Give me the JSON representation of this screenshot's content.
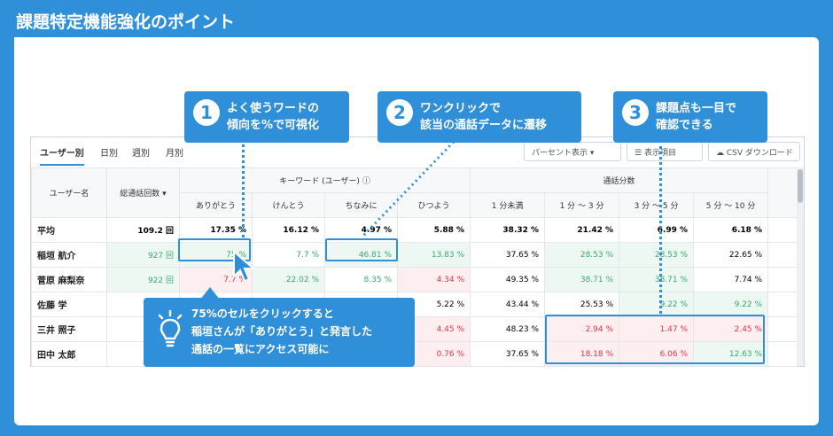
{
  "banner_title": "課題特定機能強化のポイント",
  "tabs": [
    "ユーザー別",
    "日別",
    "週別",
    "月別"
  ],
  "controls": {
    "percent": "パーセント表示",
    "display": "表示項目",
    "csv": "CSV ダウンロード"
  },
  "headers": {
    "user": "ユーザー名",
    "calls": "総通話回数",
    "keyword_group": "キーワード (ユーザー)",
    "duration_group": "通話分数",
    "keywords": [
      "ありがとう",
      "けんとう",
      "ちなみに",
      "ひつよう"
    ],
    "durations": [
      "1 分未満",
      "1 分 ～ 3 分",
      "3 分 ～ 5 分",
      "5 分 ～ 10 分"
    ]
  },
  "rows": [
    {
      "name": "平均",
      "calls": "109.2 回",
      "cells": [
        "17.35 %",
        "16.12 %",
        "4.97 %",
        "5.88 %",
        "38.32 %",
        "21.42 %",
        "6.99 %",
        "6.18 %"
      ]
    },
    {
      "name": "稲垣 航介",
      "calls": "927 回",
      "cells": [
        "75 %",
        "7.7 %",
        "46.81 %",
        "13.83 %",
        "37.65 %",
        "28.53 %",
        "28.53 %",
        "22.65 %"
      ]
    },
    {
      "name": "菅原 麻梨奈",
      "calls": "922 回",
      "cells": [
        "7.7 %",
        "22.02 %",
        "8.35 %",
        "4.34 %",
        "49.35 %",
        "38.71 %",
        "38.71 %",
        "7.74 %"
      ]
    },
    {
      "name": "佐藤 学",
      "calls": "",
      "cells": [
        "",
        "",
        "",
        "5.22 %",
        "43.44 %",
        "25.53 %",
        "9.22 %",
        "9.22 %"
      ]
    },
    {
      "name": "三井 照子",
      "calls": "",
      "cells": [
        "",
        "",
        "",
        "4.45 %",
        "48.23 %",
        "2.94 %",
        "1.47 %",
        "2.45 %"
      ]
    },
    {
      "name": "田中 太郎",
      "calls": "",
      "cells": [
        "",
        "",
        "",
        "0.76 %",
        "37.65 %",
        "18.18 %",
        "6.06 %",
        "12.63 %"
      ]
    }
  ],
  "callouts": [
    {
      "num": "1",
      "line1": "よく使うワードの",
      "line2": "傾向を%で可視化"
    },
    {
      "num": "2",
      "line1": "ワンクリックで",
      "line2": "該当の通話データに遷移"
    },
    {
      "num": "3",
      "line1": "課題点も一目で",
      "line2": "確認できる"
    },
    {
      "line1": "75%のセルをクリックすると",
      "line2": "稲垣さんが「ありがとう」と発言した",
      "line3": "通話の一覧にアクセス可能に"
    }
  ],
  "colors": {
    "accent": "#2f8fd8",
    "positive": "#3aa876",
    "negative": "#e0384a"
  }
}
